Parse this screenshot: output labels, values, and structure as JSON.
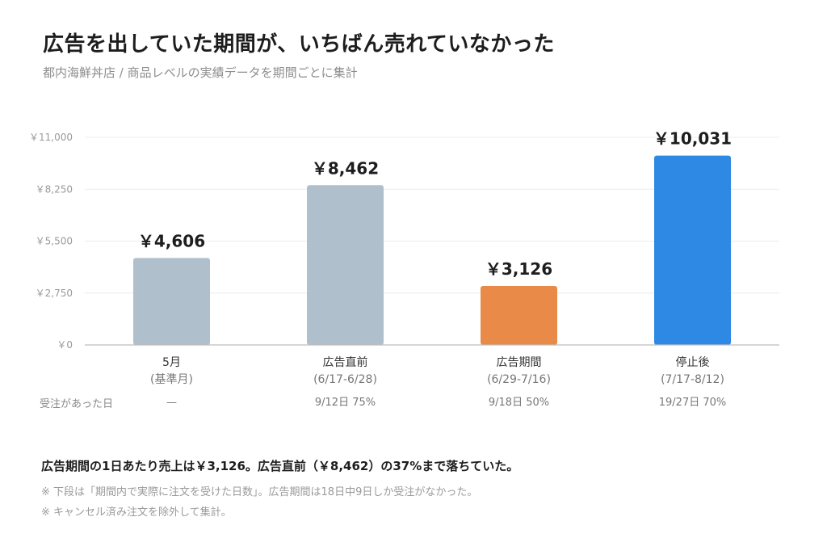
{
  "header": {
    "title": "広告を出していた期間が、いちばん売れていなかった",
    "subtitle": "都内海鮮丼店 / 商品レベルの実績データを期間ごとに集計"
  },
  "chart_data": {
    "type": "bar",
    "ylim": [
      0,
      11000
    ],
    "yticks": [
      0,
      2750,
      5500,
      8250,
      11000
    ],
    "ytick_labels": [
      "￥0",
      "￥2,750",
      "￥5,500",
      "￥8,250",
      "￥11,000"
    ],
    "grid": true,
    "categories": [
      {
        "name": "5月",
        "sub": "(基準月)",
        "value": 4606,
        "value_label": "￥4,606",
        "color": "#b0bfcc",
        "days": "—"
      },
      {
        "name": "広告直前",
        "sub": "(6/17-6/28)",
        "value": 8462,
        "value_label": "￥8,462",
        "color": "#b0bfcc",
        "days": "9/12日 75%"
      },
      {
        "name": "広告期間",
        "sub": "(6/29-7/16)",
        "value": 3126,
        "value_label": "￥3,126",
        "color": "#ea8a48",
        "days": "9/18日 50%"
      },
      {
        "name": "停止後",
        "sub": "(7/17-8/12)",
        "value": 10031,
        "value_label": "￥10,031",
        "color": "#2e89e5",
        "days": "19/27日 70%"
      }
    ]
  },
  "row_label": "受注があった日",
  "summary": "広告期間の1日あたり売上は￥3,126。広告直前（￥8,462）の37%まで落ちていた。",
  "notes": [
    "※ 下段は「期間内で実際に注文を受けた日数」。広告期間は18日中9日しか受注がなかった。",
    "※ キャンセル済み注文を除外して集計。"
  ]
}
